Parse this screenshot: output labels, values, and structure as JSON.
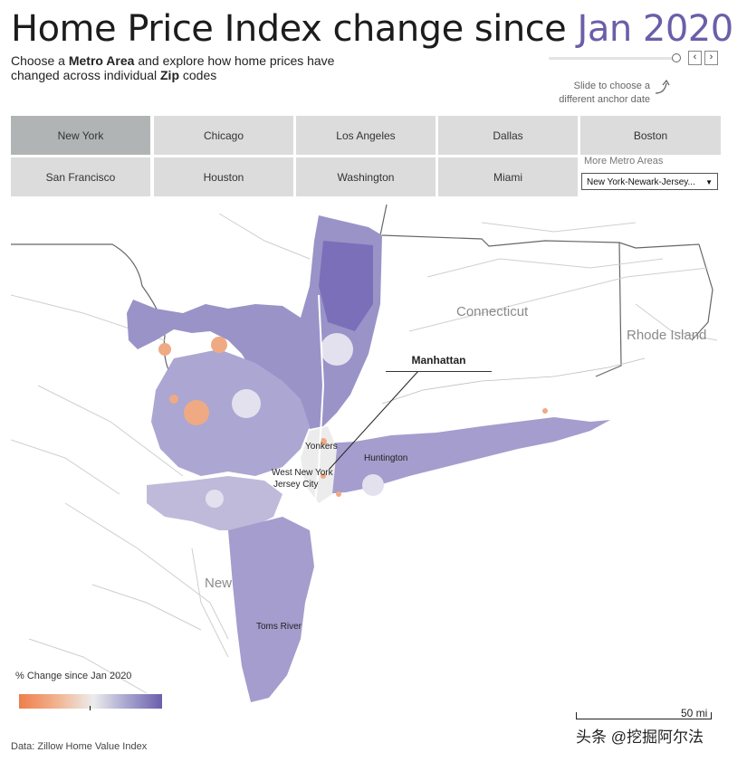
{
  "header": {
    "title_prefix": "Home Price Index change since ",
    "title_date": "Jan 2020",
    "subtitle": {
      "t1": "Choose a ",
      "b1": "Metro Area",
      "t2": " and explore how home prices have changed across individual ",
      "b2": "Zip",
      "t3": " codes"
    },
    "slider_hint": "Slide to choose a different anchor date"
  },
  "metro_tiles": [
    {
      "label": "New York",
      "active": true
    },
    {
      "label": "Chicago"
    },
    {
      "label": "Los Angeles"
    },
    {
      "label": "Dallas"
    },
    {
      "label": "Boston"
    },
    {
      "label": "San Francisco"
    },
    {
      "label": "Houston"
    },
    {
      "label": "Washington"
    },
    {
      "label": "Miami"
    }
  ],
  "more_metros": {
    "label": "More Metro Areas",
    "selected": "New York-Newark-Jersey..."
  },
  "map": {
    "state_labels": {
      "connecticut": "Connecticut",
      "rhode_island": "Rhode Island",
      "new_jersey_partial": "New"
    },
    "callout": "Manhattan",
    "cities": {
      "yonkers": "Yonkers",
      "huntington": "Huntington",
      "west_new_york": "West New York",
      "jersey_city": "Jersey City",
      "toms_river": "Toms River"
    },
    "scale_label": "50 mi"
  },
  "legend": {
    "title": "% Change since Jan 2020",
    "colors": {
      "low": "#ee7e4c",
      "mid": "#ececec",
      "high": "#6b5fab"
    }
  },
  "footer": {
    "source": "Data: Zillow Home Value Index",
    "watermark": "头条 @挖掘阿尔法"
  },
  "colors": {
    "accent": "#6a5fa8",
    "tile": "#dcdcdc",
    "tile_active": "#b1b4b5"
  }
}
